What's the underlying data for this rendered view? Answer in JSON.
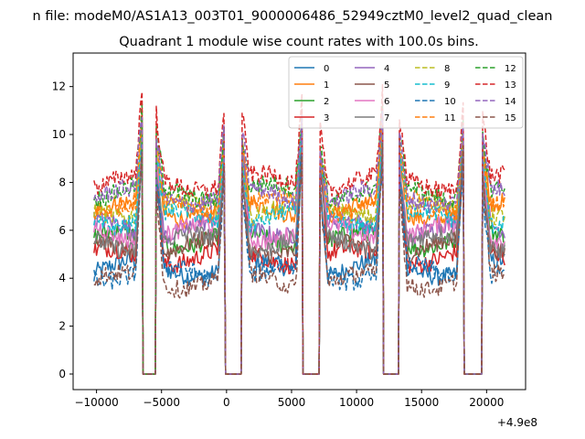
{
  "figure": {
    "suptitle": "n file: modeM0/AS1A13_003T01_9000006486_52949cztM0_level2_quad_clean",
    "title": "Quadrant 1 module wise count rates with 100.0s bins.",
    "offset_label": "+4.9e8"
  },
  "chart_data": {
    "type": "line",
    "title": "Quadrant 1 module wise count rates with 100.0s bins.",
    "xlabel": "",
    "ylabel": "",
    "x_offset": 490000000,
    "xlim": [
      -11800,
      23000
    ],
    "ylim": [
      -0.65,
      13.4
    ],
    "xticks": [
      -10000,
      -5000,
      0,
      5000,
      10000,
      15000,
      20000
    ],
    "xtick_labels": [
      "−10000",
      "−5000",
      "0",
      "5000",
      "10000",
      "15000",
      "20000"
    ],
    "yticks": [
      0,
      2,
      4,
      6,
      8,
      10,
      12
    ],
    "ytick_labels": [
      "0",
      "2",
      "4",
      "6",
      "8",
      "10",
      "12"
    ],
    "grid": false,
    "legend": {
      "placement": "top-right",
      "columns": 4
    },
    "segments": [
      [
        -10200,
        -6500
      ],
      [
        -5400,
        -150
      ],
      [
        1200,
        5800
      ],
      [
        7200,
        12000
      ],
      [
        13300,
        18200
      ],
      [
        19700,
        21400
      ]
    ],
    "gaps": [
      [
        -6500,
        -5400
      ],
      [
        -150,
        1200
      ],
      [
        5800,
        7200
      ],
      [
        12000,
        13300
      ],
      [
        18200,
        19700
      ]
    ],
    "series": [
      {
        "name": "0",
        "baseline": 4.4,
        "peak": 11.1,
        "style": "solid",
        "color": "#1f77b4"
      },
      {
        "name": "1",
        "baseline": 6.8,
        "peak": 11.3,
        "style": "solid",
        "color": "#ff7f0e"
      },
      {
        "name": "2",
        "baseline": 5.6,
        "peak": 11.4,
        "style": "solid",
        "color": "#2ca02c"
      },
      {
        "name": "3",
        "baseline": 4.9,
        "peak": 11.5,
        "style": "solid",
        "color": "#d62728"
      },
      {
        "name": "4",
        "baseline": 6.1,
        "peak": 11.6,
        "style": "solid",
        "color": "#9467bd"
      },
      {
        "name": "5",
        "baseline": 5.3,
        "peak": 11.2,
        "style": "solid",
        "color": "#8c564b"
      },
      {
        "name": "6",
        "baseline": 5.9,
        "peak": 11.3,
        "style": "solid",
        "color": "#e377c2"
      },
      {
        "name": "7",
        "baseline": 5.5,
        "peak": 11.0,
        "style": "solid",
        "color": "#7f7f7f"
      },
      {
        "name": "8",
        "baseline": 6.9,
        "peak": 11.5,
        "style": "dashed",
        "color": "#bcbd22"
      },
      {
        "name": "9",
        "baseline": 6.5,
        "peak": 11.4,
        "style": "dashed",
        "color": "#17becf"
      },
      {
        "name": "10",
        "baseline": 4.2,
        "peak": 11.0,
        "style": "dashed",
        "color": "#1f77b4"
      },
      {
        "name": "11",
        "baseline": 7.1,
        "peak": 11.6,
        "style": "dashed",
        "color": "#ff7f0e"
      },
      {
        "name": "12",
        "baseline": 7.6,
        "peak": 11.8,
        "style": "dashed",
        "color": "#2ca02c"
      },
      {
        "name": "13",
        "baseline": 8.0,
        "peak": 12.8,
        "style": "dashed",
        "color": "#d62728"
      },
      {
        "name": "14",
        "baseline": 7.4,
        "peak": 11.9,
        "style": "dashed",
        "color": "#9467bd"
      },
      {
        "name": "15",
        "baseline": 3.9,
        "peak": 11.2,
        "style": "dashed",
        "color": "#8c564b"
      }
    ]
  }
}
